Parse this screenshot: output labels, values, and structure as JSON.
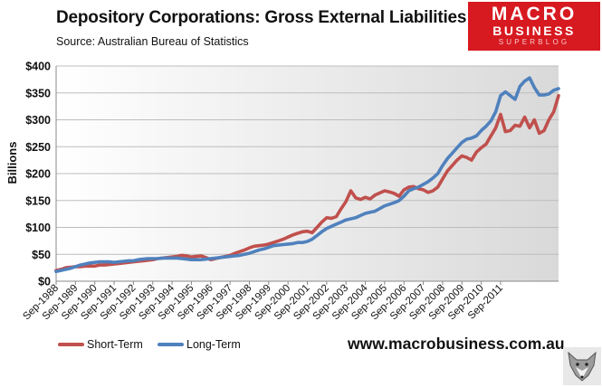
{
  "header": {
    "title": "Depository Corporations: Gross External Liabilities",
    "source": "Source:   Australian Bureau of Statistics"
  },
  "logo": {
    "line1": "MACRO",
    "line2": "BUSINESS",
    "line3": "SUPERBLOG"
  },
  "footer": {
    "url": "www.macrobusiness.com.au"
  },
  "colors": {
    "short_term": "#c0504d",
    "long_term": "#4f81bd",
    "brand": "#d71920"
  },
  "chart_data": {
    "type": "line",
    "title": "Depository Corporations: Gross External Liabilities",
    "ylabel": "Billions",
    "xlabel": "",
    "ylim": [
      0,
      400
    ],
    "yticks": [
      0,
      50,
      100,
      150,
      200,
      250,
      300,
      350,
      400
    ],
    "ytick_labels": [
      "$0",
      "$50",
      "$100",
      "$150",
      "$200",
      "$250",
      "$300",
      "$350",
      "$400"
    ],
    "xtick_labels": [
      "Sep-1988",
      "Sep-1989",
      "Sep-1990",
      "Sep-1991",
      "Sep-1992",
      "Sep-1993",
      "Sep-1994",
      "Sep-1995",
      "Sep-1996",
      "Sep-1997",
      "Sep-1998",
      "Sep-1999",
      "Sep-2000",
      "Sep-2001",
      "Sep-2002",
      "Sep-2003",
      "Sep-2004",
      "Sep-2005",
      "Sep-2006",
      "Sep-2007",
      "Sep-2008",
      "Sep-2009",
      "Sep-2010",
      "Sep-2011"
    ],
    "x_start": 1988.75,
    "x_step": 0.25,
    "legend_position": "bottom-left",
    "series": [
      {
        "name": "Short-Term",
        "color": "#c0504d",
        "values": [
          20,
          22,
          25,
          26,
          27,
          27,
          28,
          28,
          28,
          30,
          30,
          31,
          32,
          33,
          34,
          35,
          36,
          37,
          38,
          39,
          40,
          42,
          43,
          44,
          45,
          46,
          48,
          47,
          45,
          46,
          47,
          44,
          40,
          42,
          44,
          46,
          48,
          52,
          55,
          58,
          62,
          65,
          66,
          67,
          69,
          72,
          75,
          78,
          82,
          86,
          89,
          92,
          93,
          90,
          100,
          110,
          118,
          117,
          120,
          135,
          148,
          168,
          155,
          152,
          156,
          153,
          160,
          164,
          168,
          166,
          163,
          158,
          170,
          175,
          176,
          172,
          170,
          165,
          168,
          175,
          190,
          205,
          215,
          225,
          233,
          230,
          225,
          240,
          248,
          255,
          270,
          285,
          310,
          278,
          280,
          290,
          288,
          305,
          285,
          300,
          275,
          280,
          300,
          315,
          345
        ]
      },
      {
        "name": "Long-Term",
        "color": "#4f81bd",
        "values": [
          18,
          20,
          22,
          24,
          27,
          30,
          32,
          34,
          35,
          36,
          36,
          36,
          35,
          36,
          37,
          38,
          38,
          40,
          41,
          42,
          42,
          42,
          43,
          43,
          43,
          43,
          42,
          41,
          40,
          40,
          40,
          41,
          42,
          43,
          44,
          45,
          46,
          47,
          48,
          50,
          52,
          55,
          58,
          60,
          63,
          66,
          67,
          68,
          69,
          70,
          72,
          72,
          74,
          78,
          85,
          92,
          98,
          102,
          106,
          110,
          114,
          116,
          118,
          122,
          126,
          128,
          130,
          135,
          140,
          143,
          146,
          150,
          158,
          168,
          172,
          175,
          180,
          185,
          192,
          200,
          215,
          228,
          238,
          248,
          258,
          264,
          266,
          270,
          280,
          288,
          298,
          315,
          345,
          352,
          345,
          338,
          362,
          372,
          378,
          360,
          346,
          346,
          348,
          355,
          358
        ]
      }
    ]
  }
}
